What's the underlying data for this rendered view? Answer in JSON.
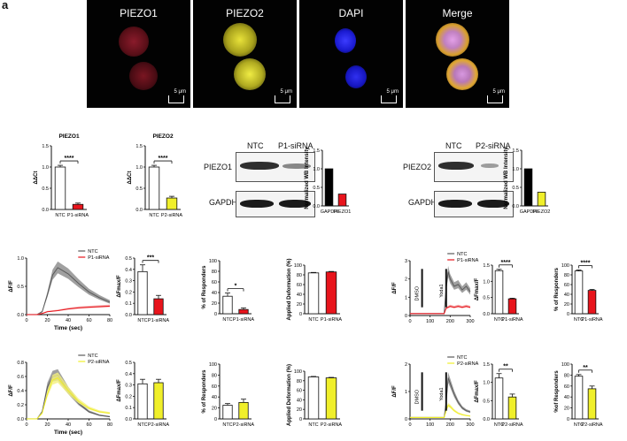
{
  "panel_letter": "a",
  "micrographs": [
    {
      "label": "PIEZO1",
      "scale": "5 μm"
    },
    {
      "label": "PIEZO2",
      "scale": "5 μm"
    },
    {
      "label": "DAPI",
      "scale": "5 μm"
    },
    {
      "label": "Merge",
      "scale": "5 μm"
    }
  ],
  "western": {
    "blot1": {
      "lanes": [
        "NTC",
        "P1-siRNA"
      ],
      "rows": [
        "PIEZO1",
        "GAPDH"
      ]
    },
    "blot2": {
      "lanes": [
        "NTC",
        "P2-siRNA"
      ],
      "rows": [
        "PIEZO2",
        "GAPDH"
      ]
    }
  },
  "colors": {
    "ntc": "#ffffff",
    "p1": "#e8141c",
    "p2": "#f0ef2a",
    "gray": "#555555"
  },
  "chart_data": [
    {
      "type": "bar",
      "title": "PIEZO1",
      "ylabel": "ΔΔCt",
      "categories": [
        "NTC",
        "P1-siRNA"
      ],
      "values": [
        1.0,
        0.12
      ],
      "errors": [
        0.04,
        0.03
      ],
      "ylim": [
        0,
        1.5
      ],
      "yticks": [
        "0.0",
        "0.5",
        "1.0",
        "1.5"
      ],
      "significance": "****"
    },
    {
      "type": "bar",
      "title": "PIEZO2",
      "ylabel": "ΔΔCt",
      "categories": [
        "NTC",
        "P2-siRNA"
      ],
      "values": [
        1.0,
        0.27
      ],
      "errors": [
        0.04,
        0.04
      ],
      "ylim": [
        0,
        1.5
      ],
      "yticks": [
        "0.0",
        "0.5",
        "1.0",
        "1.5"
      ],
      "significance": "****"
    },
    {
      "type": "bar",
      "title": "",
      "ylabel": "Normalized WB Intensity",
      "categories": [
        "GAPDH",
        "PIEZO1"
      ],
      "values": [
        1.0,
        0.32
      ],
      "ylim": [
        0,
        1.5
      ],
      "yticks": [
        "0.0",
        "0.5",
        "1.0",
        "1.5"
      ]
    },
    {
      "type": "bar",
      "title": "",
      "ylabel": "Normalized WB Intensity",
      "categories": [
        "GAPDH",
        "PIEZO2"
      ],
      "values": [
        1.0,
        0.37
      ],
      "ylim": [
        0,
        1.5
      ],
      "yticks": [
        "0.0",
        "0.5",
        "1.0",
        "1.5"
      ]
    },
    {
      "type": "line",
      "title": "",
      "xlabel": "Time (sec)",
      "ylabel": "ΔF/F",
      "xlim": [
        0,
        80
      ],
      "ylim": [
        0,
        1.0
      ],
      "xticks": [
        "0",
        "20",
        "40",
        "60",
        "80"
      ],
      "yticks": [
        "0.0",
        "0.5",
        "1.0"
      ],
      "series": [
        {
          "name": "NTC",
          "x": [
            0,
            10,
            15,
            20,
            25,
            30,
            40,
            50,
            60,
            70,
            80
          ],
          "y": [
            0,
            0,
            0.05,
            0.35,
            0.7,
            0.83,
            0.72,
            0.55,
            0.4,
            0.3,
            0.22
          ]
        },
        {
          "name": "P1-siRNA",
          "x": [
            0,
            10,
            15,
            20,
            30,
            40,
            50,
            60,
            70,
            80
          ],
          "y": [
            0,
            0,
            0.02,
            0.05,
            0.07,
            0.1,
            0.12,
            0.13,
            0.14,
            0.15
          ]
        }
      ]
    },
    {
      "type": "bar",
      "title": "",
      "ylabel": "ΔFmax/F",
      "categories": [
        "NTC",
        "P1-siRNA"
      ],
      "values": [
        0.38,
        0.14
      ],
      "errors": [
        0.06,
        0.03
      ],
      "ylim": [
        0,
        0.5
      ],
      "yticks": [
        "0.0",
        "0.1",
        "0.2",
        "0.3",
        "0.4",
        "0.5"
      ],
      "significance": "***"
    },
    {
      "type": "bar",
      "title": "",
      "ylabel": "% of Responders",
      "categories": [
        "NTC",
        "P1-siRNA"
      ],
      "values": [
        33,
        8
      ],
      "errors": [
        6,
        3
      ],
      "ylim": [
        0,
        100
      ],
      "yticks": [
        "0",
        "20",
        "40",
        "60",
        "80",
        "100"
      ],
      "significance": "*"
    },
    {
      "type": "bar",
      "title": "",
      "ylabel": "Applied Deformation (%)",
      "categories": [
        "NTC",
        "P1-siRNA"
      ],
      "values": [
        84,
        86
      ],
      "errors": [
        1,
        1
      ],
      "ylim": [
        0,
        100
      ],
      "yticks": [
        "0",
        "20",
        "40",
        "60",
        "80",
        "100"
      ]
    },
    {
      "type": "line",
      "title": "",
      "xlabel": "",
      "ylabel": "ΔF/F",
      "xlim": [
        0,
        300
      ],
      "ylim": [
        0,
        3
      ],
      "xticks": [
        "0",
        "100",
        "200",
        "300"
      ],
      "yticks": [
        "0",
        "1",
        "2",
        "3"
      ],
      "annotations": [
        "DMSO",
        "Yoda1"
      ],
      "series": [
        {
          "name": "NTC",
          "x": [
            0,
            170,
            180,
            190,
            200,
            220,
            240,
            260,
            280,
            300
          ],
          "y": [
            0.1,
            0.1,
            1.5,
            2.4,
            2.0,
            1.6,
            1.7,
            1.4,
            1.6,
            1.3
          ]
        },
        {
          "name": "P1-siRNA",
          "x": [
            0,
            170,
            180,
            200,
            220,
            240,
            260,
            280,
            300
          ],
          "y": [
            0.1,
            0.1,
            0.4,
            0.5,
            0.45,
            0.5,
            0.45,
            0.5,
            0.45
          ]
        }
      ]
    },
    {
      "type": "bar",
      "title": "",
      "ylabel": "ΔFmax/F",
      "categories": [
        "NTC",
        "P1-siRNA"
      ],
      "values": [
        1.33,
        0.46
      ],
      "errors": [
        0.04,
        0.02
      ],
      "ylim": [
        0,
        1.5
      ],
      "yticks": [
        "0.0",
        "0.5",
        "1.0",
        "1.5"
      ],
      "significance": "****"
    },
    {
      "type": "bar",
      "title": "",
      "ylabel": "% of Responders",
      "categories": [
        "NTC",
        "P1-siRNA"
      ],
      "values": [
        88,
        48
      ],
      "errors": [
        2,
        2
      ],
      "ylim": [
        0,
        100
      ],
      "yticks": [
        "0",
        "20",
        "40",
        "60",
        "80",
        "100"
      ],
      "significance": "****"
    },
    {
      "type": "line",
      "title": "",
      "xlabel": "Time (sec)",
      "ylabel": "ΔF/F",
      "xlim": [
        0,
        80
      ],
      "ylim": [
        0,
        0.8
      ],
      "xticks": [
        "0",
        "20",
        "40",
        "60",
        "80"
      ],
      "yticks": [
        "0.0",
        "0.2",
        "0.4",
        "0.6",
        "0.8"
      ],
      "series": [
        {
          "name": "NTC",
          "x": [
            0,
            10,
            15,
            20,
            25,
            30,
            40,
            50,
            60,
            70,
            80
          ],
          "y": [
            0,
            0,
            0.1,
            0.45,
            0.6,
            0.62,
            0.4,
            0.22,
            0.1,
            0.05,
            0.03
          ]
        },
        {
          "name": "P2-siRNA",
          "x": [
            0,
            10,
            15,
            20,
            25,
            30,
            40,
            50,
            60,
            70,
            80
          ],
          "y": [
            0,
            0,
            0.08,
            0.35,
            0.55,
            0.58,
            0.4,
            0.25,
            0.15,
            0.1,
            0.08
          ]
        }
      ]
    },
    {
      "type": "bar",
      "title": "",
      "ylabel": "ΔFmax/F",
      "categories": [
        "NTC",
        "P2-siRNA"
      ],
      "values": [
        0.31,
        0.32
      ],
      "errors": [
        0.04,
        0.03
      ],
      "ylim": [
        0,
        0.5
      ],
      "yticks": [
        "0.0",
        "0.1",
        "0.2",
        "0.3",
        "0.4",
        "0.5"
      ]
    },
    {
      "type": "bar",
      "title": "",
      "ylabel": "% of Responders",
      "categories": [
        "NTC",
        "P2-siRNA"
      ],
      "values": [
        25,
        30
      ],
      "errors": [
        3,
        6
      ],
      "ylim": [
        0,
        100
      ],
      "yticks": [
        "0",
        "20",
        "40",
        "60",
        "80",
        "100"
      ]
    },
    {
      "type": "bar",
      "title": "",
      "ylabel": "Applied Deformation (%)",
      "categories": [
        "NTC",
        "P2-siRNA"
      ],
      "values": [
        88,
        86
      ],
      "errors": [
        1,
        1
      ],
      "ylim": [
        0,
        100
      ],
      "yticks": [
        "0",
        "20",
        "40",
        "60",
        "80",
        "100"
      ]
    },
    {
      "type": "line",
      "title": "",
      "xlabel": "",
      "ylabel": "ΔF/F",
      "xlim": [
        0,
        300
      ],
      "ylim": [
        0,
        2
      ],
      "xticks": [
        "0",
        "100",
        "200",
        "300"
      ],
      "yticks": [
        "0",
        "1",
        "2"
      ],
      "annotations": [
        "DMSO",
        "Yoda1"
      ],
      "series": [
        {
          "name": "NTC",
          "x": [
            0,
            170,
            180,
            190,
            200,
            220,
            240,
            260,
            280,
            300
          ],
          "y": [
            0.05,
            0.05,
            0.6,
            1.5,
            1.3,
            0.9,
            0.6,
            0.4,
            0.3,
            0.25
          ]
        },
        {
          "name": "P2-siRNA",
          "x": [
            0,
            170,
            180,
            190,
            200,
            220,
            240,
            260,
            280,
            300
          ],
          "y": [
            0.05,
            0.05,
            0.3,
            0.5,
            0.45,
            0.3,
            0.2,
            0.15,
            0.12,
            0.1
          ]
        }
      ]
    },
    {
      "type": "bar",
      "title": "",
      "ylabel": "ΔFmax/F",
      "categories": [
        "NTC",
        "P2-siRNA"
      ],
      "values": [
        1.12,
        0.6
      ],
      "errors": [
        0.12,
        0.08
      ],
      "ylim": [
        0,
        1.5
      ],
      "yticks": [
        "0.0",
        "0.5",
        "1.0",
        "1.5"
      ],
      "significance": "**"
    },
    {
      "type": "bar",
      "title": "",
      "ylabel": "%of Responders",
      "categories": [
        "NTC",
        "P2-siRNA"
      ],
      "values": [
        78,
        55
      ],
      "errors": [
        3,
        5
      ],
      "ylim": [
        0,
        100
      ],
      "yticks": [
        "0",
        "20",
        "40",
        "60",
        "80",
        "100"
      ],
      "significance": "**"
    }
  ]
}
